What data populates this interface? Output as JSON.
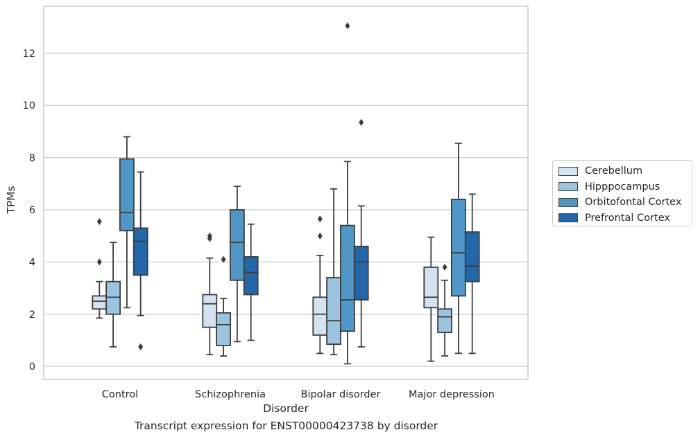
{
  "caption": "Transcript expression for ENST00000423738 by disorder",
  "chart_data": {
    "type": "boxplot",
    "xlabel": "Disorder",
    "ylabel": "TPMs",
    "ylim": [
      -0.5,
      13.8
    ],
    "yticks": [
      0,
      2,
      4,
      6,
      8,
      10,
      12
    ],
    "grid": true,
    "legend_position": "right",
    "categories": [
      "Control",
      "Schizophrenia",
      "Bipolar disorder",
      "Major depression"
    ],
    "series": [
      {
        "name": "Cerebellum",
        "color": "#d4e2f1",
        "boxes": [
          {
            "whislo": 1.85,
            "q1": 2.2,
            "med": 2.5,
            "q3": 2.7,
            "whishi": 3.25,
            "fliers": [
              4.0,
              5.55
            ]
          },
          {
            "whislo": 0.45,
            "q1": 1.5,
            "med": 2.4,
            "q3": 2.75,
            "whishi": 4.15,
            "fliers": [
              4.9,
              5.0
            ]
          },
          {
            "whislo": 0.5,
            "q1": 1.2,
            "med": 2.0,
            "q3": 2.65,
            "whishi": 4.25,
            "fliers": [
              5.0,
              5.65
            ]
          },
          {
            "whislo": 0.2,
            "q1": 2.25,
            "med": 2.65,
            "q3": 3.8,
            "whishi": 4.95,
            "fliers": []
          }
        ]
      },
      {
        "name": "Hipppocampus",
        "color": "#9cc4e0",
        "boxes": [
          {
            "whislo": 0.75,
            "q1": 2.0,
            "med": 2.65,
            "q3": 3.25,
            "whishi": 4.75,
            "fliers": []
          },
          {
            "whislo": 0.4,
            "q1": 0.8,
            "med": 1.6,
            "q3": 2.05,
            "whishi": 2.6,
            "fliers": [
              4.1
            ]
          },
          {
            "whislo": 0.45,
            "q1": 0.85,
            "med": 1.75,
            "q3": 3.4,
            "whishi": 6.8,
            "fliers": []
          },
          {
            "whislo": 0.4,
            "q1": 1.3,
            "med": 1.9,
            "q3": 2.2,
            "whishi": 3.3,
            "fliers": [
              3.8
            ]
          }
        ]
      },
      {
        "name": "Orbitofontal Cortex",
        "color": "#5096c6",
        "boxes": [
          {
            "whislo": 2.25,
            "q1": 5.2,
            "med": 5.9,
            "q3": 7.95,
            "whishi": 8.8,
            "fliers": []
          },
          {
            "whislo": 0.95,
            "q1": 3.3,
            "med": 4.75,
            "q3": 6.0,
            "whishi": 6.9,
            "fliers": []
          },
          {
            "whislo": 0.1,
            "q1": 1.35,
            "med": 2.55,
            "q3": 5.4,
            "whishi": 7.85,
            "fliers": [
              13.05
            ]
          },
          {
            "whislo": 0.5,
            "q1": 2.7,
            "med": 4.35,
            "q3": 6.4,
            "whishi": 8.55,
            "fliers": []
          }
        ]
      },
      {
        "name": "Prefrontal Cortex",
        "color": "#2467a8",
        "boxes": [
          {
            "whislo": 1.95,
            "q1": 3.5,
            "med": 4.8,
            "q3": 5.3,
            "whishi": 7.45,
            "fliers": [
              0.75
            ]
          },
          {
            "whislo": 1.0,
            "q1": 2.75,
            "med": 3.6,
            "q3": 4.2,
            "whishi": 5.45,
            "fliers": []
          },
          {
            "whislo": 0.75,
            "q1": 2.55,
            "med": 4.0,
            "q3": 4.6,
            "whishi": 6.15,
            "fliers": [
              9.35
            ]
          },
          {
            "whislo": 0.5,
            "q1": 3.25,
            "med": 3.85,
            "q3": 5.15,
            "whishi": 6.6,
            "fliers": []
          }
        ]
      }
    ]
  }
}
